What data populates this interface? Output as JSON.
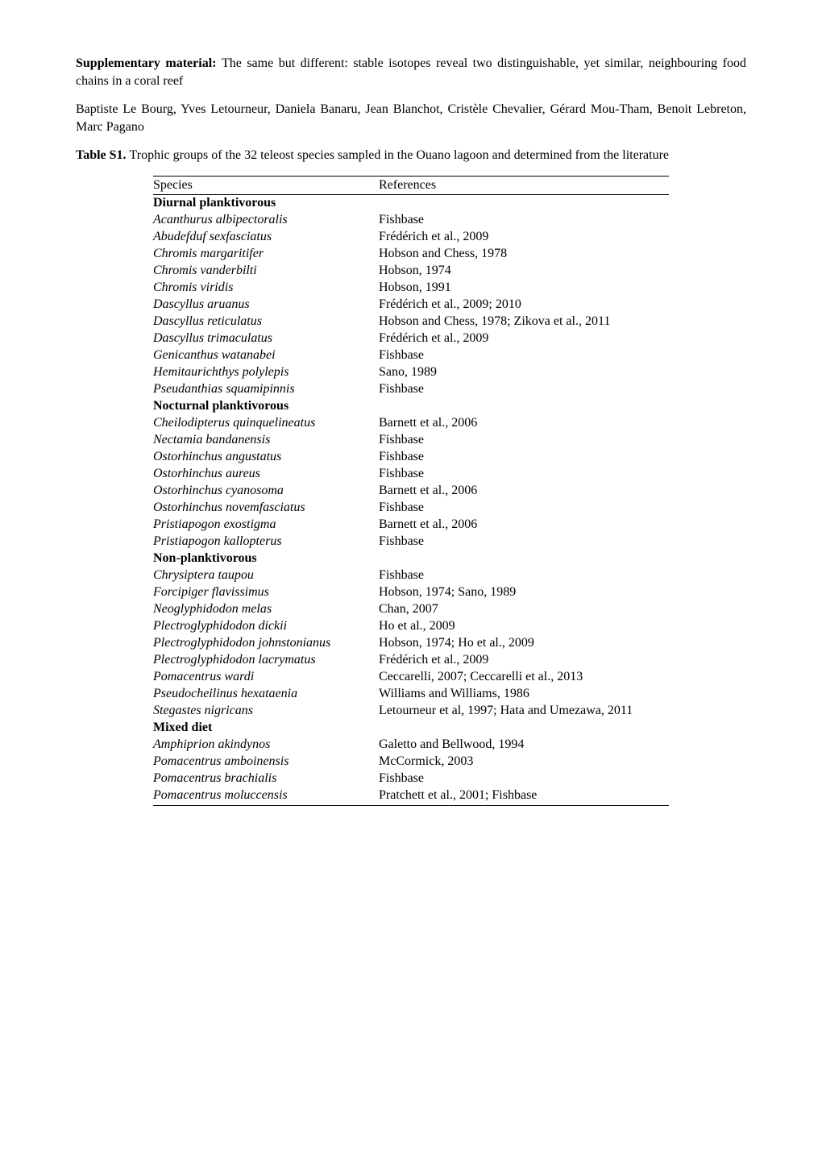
{
  "intro": {
    "supp_label": "Supplementary material: ",
    "supp_text": "The same but different: stable isotopes reveal two distinguishable, yet similar, neighbouring food chains in a coral reef",
    "authors": "Baptiste Le Bourg, Yves Letourneur, Daniela Banaru, Jean Blanchot, Cristèle Chevalier, Gérard Mou-Tham, Benoit Lebreton, Marc Pagano",
    "table_label": "Table S1. ",
    "table_caption": "Trophic groups of the 32 teleost species sampled in the Ouano lagoon and determined from the literature"
  },
  "table": {
    "headers": {
      "species": "Species",
      "references": "References"
    },
    "rows": [
      {
        "type": "group",
        "label": "Diurnal planktivorous"
      },
      {
        "type": "species",
        "species": "Acanthurus albipectoralis",
        "ref": "Fishbase"
      },
      {
        "type": "species",
        "species": "Abudefduf sexfasciatus",
        "ref": "Frédérich et al., 2009"
      },
      {
        "type": "species",
        "species": "Chromis margaritifer",
        "ref": "Hobson and Chess, 1978"
      },
      {
        "type": "species",
        "species": "Chromis vanderbilti",
        "ref": "Hobson, 1974"
      },
      {
        "type": "species",
        "species": "Chromis viridis",
        "ref": "Hobson, 1991"
      },
      {
        "type": "species",
        "species": "Dascyllus aruanus",
        "ref": "Frédérich et al., 2009; 2010"
      },
      {
        "type": "species",
        "species": "Dascyllus reticulatus",
        "ref": "Hobson and Chess, 1978; Zikova et al., 2011"
      },
      {
        "type": "species",
        "species": "Dascyllus trimaculatus",
        "ref": "Frédérich et al., 2009"
      },
      {
        "type": "species",
        "species": "Genicanthus watanabei",
        "ref": "Fishbase"
      },
      {
        "type": "species",
        "species": "Hemitaurichthys polylepis",
        "ref": "Sano, 1989"
      },
      {
        "type": "species",
        "species": "Pseudanthias squamipinnis",
        "ref": "Fishbase"
      },
      {
        "type": "group",
        "label": "Nocturnal planktivorous"
      },
      {
        "type": "species",
        "species": "Cheilodipterus quinquelineatus",
        "ref": "Barnett et al., 2006"
      },
      {
        "type": "species",
        "species": "Nectamia bandanensis",
        "ref": "Fishbase"
      },
      {
        "type": "species",
        "species": "Ostorhinchus angustatus",
        "ref": "Fishbase"
      },
      {
        "type": "species",
        "species": "Ostorhinchus aureus",
        "ref": "Fishbase"
      },
      {
        "type": "species",
        "species": "Ostorhinchus cyanosoma",
        "ref": "Barnett et al., 2006"
      },
      {
        "type": "species",
        "species": "Ostorhinchus novemfasciatus",
        "ref": "Fishbase"
      },
      {
        "type": "species",
        "species": "Pristiapogon exostigma",
        "ref": "Barnett et al., 2006"
      },
      {
        "type": "species",
        "species": "Pristiapogon kallopterus",
        "ref": "Fishbase"
      },
      {
        "type": "group",
        "label": "Non-planktivorous"
      },
      {
        "type": "species",
        "species": "Chrysiptera taupou",
        "ref": "Fishbase"
      },
      {
        "type": "species",
        "species": "Forcipiger flavissimus",
        "ref": "Hobson, 1974; Sano, 1989"
      },
      {
        "type": "species",
        "species": "Neoglyphidodon melas",
        "ref": "Chan, 2007"
      },
      {
        "type": "species",
        "species": "Plectroglyphidodon dickii",
        "ref": "Ho et al., 2009"
      },
      {
        "type": "species",
        "species": "Plectroglyphidodon johnstonianus",
        "ref": "Hobson, 1974; Ho et al., 2009"
      },
      {
        "type": "species",
        "species": "Plectroglyphidodon lacrymatus",
        "ref": "Frédérich et al., 2009"
      },
      {
        "type": "species",
        "species": "Pomacentrus wardi",
        "ref": "Ceccarelli, 2007; Ceccarelli et al., 2013"
      },
      {
        "type": "species",
        "species": "Pseudocheilinus hexataenia",
        "ref": "Williams and Williams, 1986"
      },
      {
        "type": "species",
        "species": "Stegastes nigricans",
        "ref": "Letourneur et al, 1997; Hata and Umezawa, 2011"
      },
      {
        "type": "group",
        "label": "Mixed diet"
      },
      {
        "type": "species",
        "species": "Amphiprion akindynos",
        "ref": "Galetto and Bellwood, 1994"
      },
      {
        "type": "species",
        "species": "Pomacentrus amboinensis",
        "ref": "McCormick, 2003"
      },
      {
        "type": "species",
        "species": "Pomacentrus brachialis",
        "ref": "Fishbase"
      },
      {
        "type": "species",
        "species": "Pomacentrus moluccensis",
        "ref": "Pratchett et al., 2001; Fishbase"
      }
    ]
  }
}
